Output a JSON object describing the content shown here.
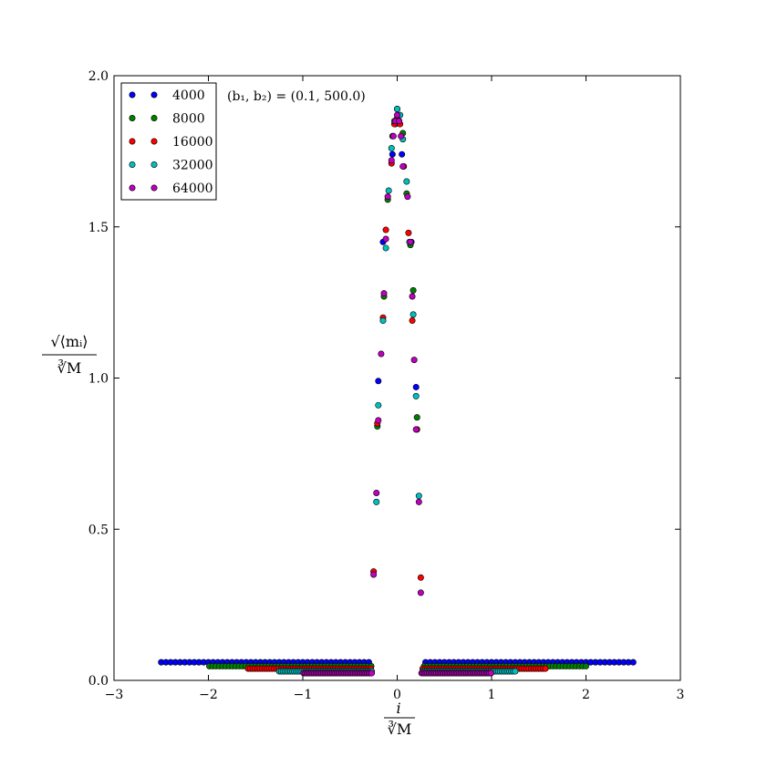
{
  "chart_data": {
    "type": "scatter",
    "xlabel_num": "i",
    "xlabel_den": "∛M",
    "ylabel_num": "√⟨mᵢ⟩",
    "ylabel_den": "∛M",
    "annotation": "(b₁, b₂) = (0.1, 500.0)",
    "xlim": [
      -3,
      3
    ],
    "ylim": [
      0,
      2
    ],
    "xticks": [
      -3,
      -2,
      -1,
      0,
      1,
      2,
      3
    ],
    "xtick_labels": [
      "−3",
      "−2",
      "−1",
      "0",
      "1",
      "2",
      "3"
    ],
    "yticks": [
      0,
      0.5,
      1,
      1.5,
      2
    ],
    "ytick_labels": [
      "0.0",
      "0.5",
      "1.0",
      "1.5",
      "2.0"
    ],
    "legend_position": "top-left",
    "colors": {
      "4000": "#0000ff",
      "8000": "#008000",
      "16000": "#ff0000",
      "32000": "#00bfbf",
      "64000": "#bf00bf"
    },
    "series": [
      {
        "name": "4000",
        "plateau_y": 0.06,
        "plateau_extent": [
          -2.5,
          2.5
        ],
        "plateau_spacing": 0.05,
        "peak": [
          [
            -0.2,
            0.99
          ],
          [
            -0.15,
            1.45
          ],
          [
            -0.05,
            1.74
          ],
          [
            0.0,
            1.89
          ],
          [
            0.05,
            1.74
          ],
          [
            0.15,
            1.45
          ],
          [
            0.2,
            0.97
          ]
        ]
      },
      {
        "name": "8000",
        "plateau_y": 0.047,
        "plateau_extent": [
          -1.99,
          1.99
        ],
        "plateau_spacing": 0.035,
        "peak": [
          [
            -0.21,
            0.84
          ],
          [
            -0.14,
            1.27
          ],
          [
            -0.1,
            1.59
          ],
          [
            -0.05,
            1.8
          ],
          [
            -0.02,
            1.84
          ],
          [
            0.02,
            1.85
          ],
          [
            0.06,
            1.81
          ],
          [
            0.1,
            1.61
          ],
          [
            0.14,
            1.44
          ],
          [
            0.17,
            1.29
          ],
          [
            0.21,
            0.87
          ]
        ]
      },
      {
        "name": "16000",
        "plateau_y": 0.039,
        "plateau_extent": [
          -1.58,
          1.58
        ],
        "plateau_spacing": 0.025,
        "peak": [
          [
            -0.25,
            0.36
          ],
          [
            -0.21,
            0.85
          ],
          [
            -0.15,
            1.2
          ],
          [
            -0.12,
            1.49
          ],
          [
            -0.06,
            1.71
          ],
          [
            -0.03,
            1.84
          ],
          [
            0.0,
            1.86
          ],
          [
            0.03,
            1.84
          ],
          [
            0.07,
            1.7
          ],
          [
            0.12,
            1.48
          ],
          [
            0.16,
            1.19
          ],
          [
            0.21,
            0.83
          ],
          [
            0.25,
            0.34
          ]
        ]
      },
      {
        "name": "32000",
        "plateau_y": 0.03,
        "plateau_extent": [
          -1.25,
          1.25
        ],
        "plateau_spacing": 0.02,
        "peak": [
          [
            -0.22,
            0.59
          ],
          [
            -0.2,
            0.91
          ],
          [
            -0.15,
            1.19
          ],
          [
            -0.12,
            1.43
          ],
          [
            -0.09,
            1.62
          ],
          [
            -0.06,
            1.76
          ],
          [
            -0.03,
            1.85
          ],
          [
            0.0,
            1.89
          ],
          [
            0.03,
            1.87
          ],
          [
            0.06,
            1.79
          ],
          [
            0.1,
            1.65
          ],
          [
            0.13,
            1.45
          ],
          [
            0.17,
            1.21
          ],
          [
            0.2,
            0.94
          ],
          [
            0.23,
            0.61
          ]
        ]
      },
      {
        "name": "64000",
        "plateau_y": 0.024,
        "plateau_extent": [
          -0.99,
          0.99
        ],
        "plateau_spacing": 0.016,
        "peak": [
          [
            -0.25,
            0.35
          ],
          [
            -0.22,
            0.62
          ],
          [
            -0.2,
            0.86
          ],
          [
            -0.17,
            1.08
          ],
          [
            -0.14,
            1.28
          ],
          [
            -0.12,
            1.46
          ],
          [
            -0.1,
            1.6
          ],
          [
            -0.06,
            1.72
          ],
          [
            -0.04,
            1.8
          ],
          [
            -0.02,
            1.85
          ],
          [
            0.0,
            1.87
          ],
          [
            0.02,
            1.85
          ],
          [
            0.04,
            1.8
          ],
          [
            0.06,
            1.7
          ],
          [
            0.11,
            1.6
          ],
          [
            0.14,
            1.45
          ],
          [
            0.16,
            1.27
          ],
          [
            0.18,
            1.06
          ],
          [
            0.2,
            0.83
          ],
          [
            0.23,
            0.59
          ],
          [
            0.25,
            0.29
          ]
        ]
      }
    ]
  }
}
